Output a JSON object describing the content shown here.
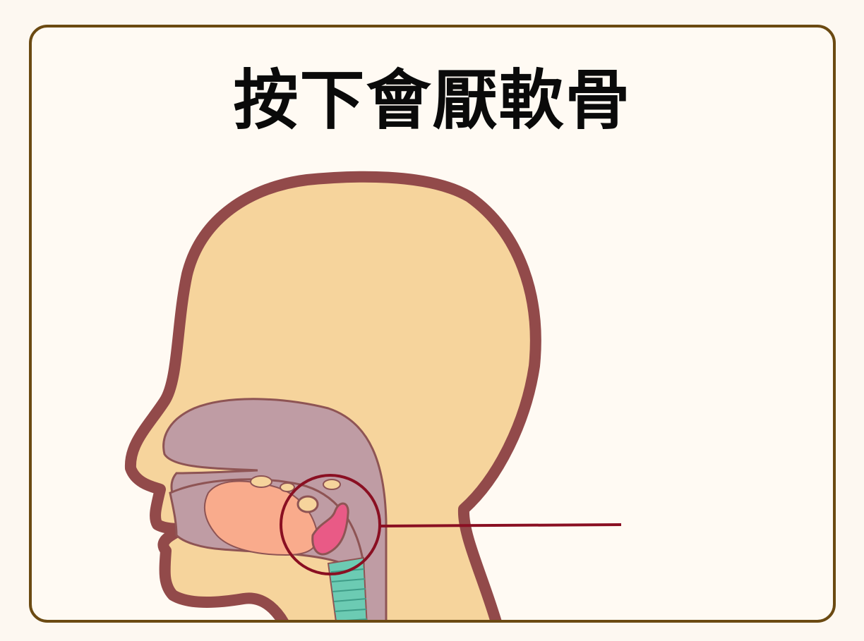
{
  "title": "按下會厭軟骨",
  "colors": {
    "background": "#fdf8f1",
    "frame_border": "#6b4a12",
    "skin": "#f6d49c",
    "skin_outline": "#924a4a",
    "cavity": "#bf9ca4",
    "cavity_outline": "#8e5454",
    "tongue": "#f9ab8c",
    "epiglottis": "#e95a86",
    "trachea": "#6ccbb3",
    "highlight": "#8a0f22"
  },
  "icons": {
    "highlight_marker": "circle-callout"
  }
}
